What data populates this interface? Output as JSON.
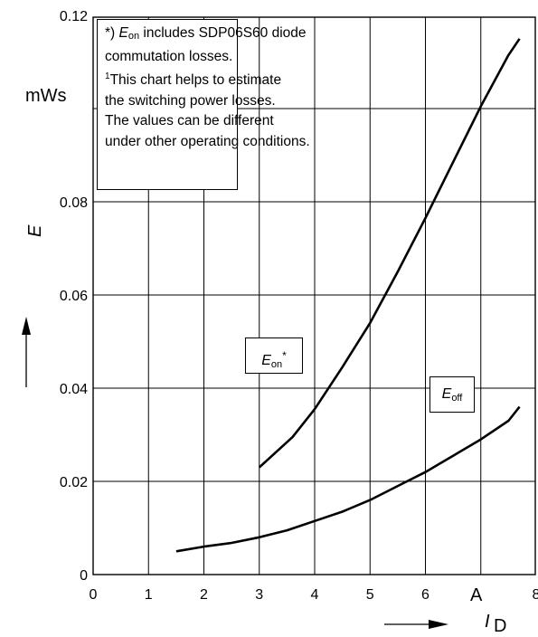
{
  "chart_data": {
    "type": "line",
    "xlabel": "I",
    "xlabel_sub": "D",
    "xunit": "A",
    "ylabel": "E",
    "yunit": "mWs",
    "xlim": [
      0,
      8
    ],
    "ylim": [
      0,
      0.12
    ],
    "x_ticks": [
      "0",
      "1",
      "2",
      "3",
      "4",
      "5",
      "6",
      "",
      "8"
    ],
    "y_ticks": [
      "0",
      "0.02",
      "0.04",
      "0.06",
      "0.08",
      "",
      "0.12"
    ],
    "grid": true,
    "series": [
      {
        "name": "Eon*",
        "name_main": "E",
        "name_sub": "on",
        "name_sup": "*",
        "color": "#000000",
        "x": [
          3.0,
          3.6,
          4.0,
          4.5,
          5.0,
          5.5,
          6.0,
          6.5,
          7.0,
          7.5,
          7.7
        ],
        "y": [
          0.023,
          0.0295,
          0.0355,
          0.0445,
          0.054,
          0.065,
          0.0765,
          0.0885,
          0.1005,
          0.1115,
          0.115
        ]
      },
      {
        "name": "Eoff",
        "name_main": "E",
        "name_sub": "off",
        "name_sup": "",
        "color": "#000000",
        "x": [
          1.5,
          2.0,
          2.5,
          3.0,
          3.5,
          4.0,
          4.5,
          5.0,
          5.5,
          6.0,
          6.5,
          7.0,
          7.5,
          7.7
        ],
        "y": [
          0.005,
          0.006,
          0.0068,
          0.008,
          0.0095,
          0.0115,
          0.0135,
          0.016,
          0.019,
          0.022,
          0.0255,
          0.029,
          0.033,
          0.036
        ]
      }
    ],
    "note": {
      "line1_prefix": "*)",
      "line1_main": "E",
      "line1_sub": "on",
      "line1_rest": "includes SDP06S60 diode",
      "line2": "commutation losses.",
      "line3_sup": "1",
      "line3": "This chart helps to estimate",
      "line4": "the switching power losses.",
      "line5": "The values  can be different",
      "line6": "under other operating conditions."
    }
  }
}
